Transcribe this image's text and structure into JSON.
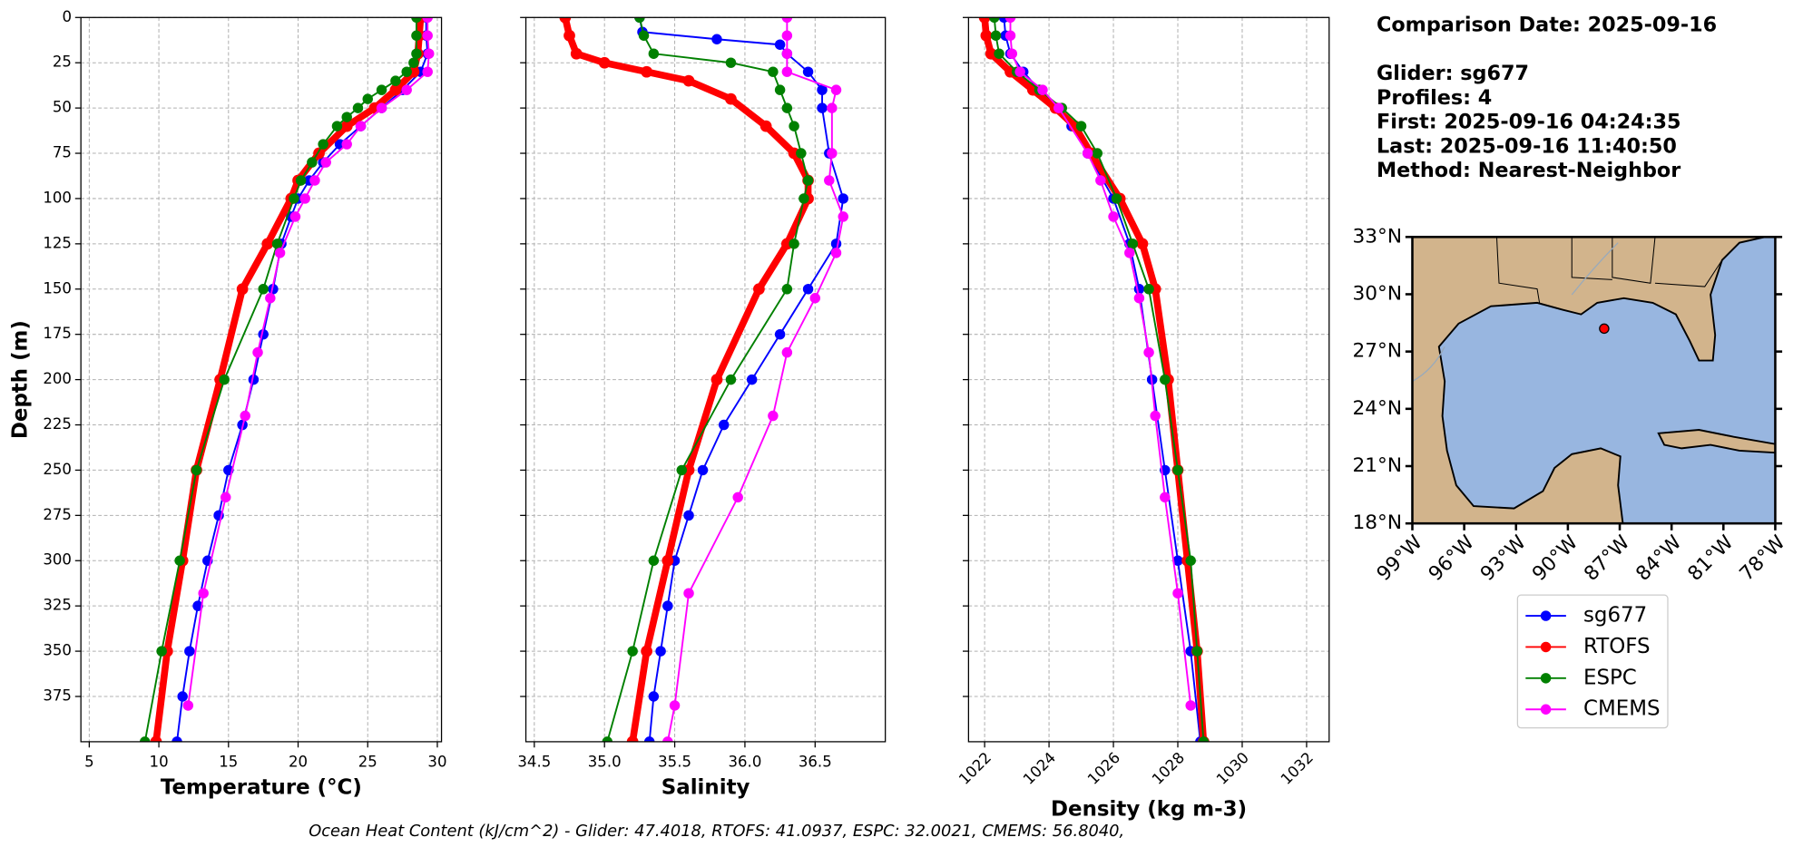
{
  "chart_data": [
    {
      "type": "line",
      "xlabel": "Temperature (°C)",
      "ylabel": "Depth (m)",
      "xlim": [
        4.4,
        30.3
      ],
      "xticks": [
        5,
        10,
        15,
        20,
        25,
        30
      ],
      "ylim": [
        400,
        0
      ],
      "yticks": [
        0,
        25,
        50,
        75,
        100,
        125,
        150,
        175,
        200,
        225,
        250,
        275,
        300,
        325,
        350,
        375
      ],
      "grid": true,
      "series": [
        {
          "name": "sg677",
          "color": "#0000ff",
          "linewidth": 1.5,
          "depth": [
            0,
            10,
            20,
            30,
            40,
            50,
            60,
            70,
            80,
            90,
            100,
            110,
            125,
            150,
            175,
            200,
            225,
            250,
            275,
            300,
            325,
            350,
            375,
            400
          ],
          "values": [
            29.2,
            29.2,
            29.3,
            28.8,
            27.5,
            26,
            24.5,
            23,
            21.8,
            20.8,
            20,
            19.5,
            18.8,
            18.2,
            17.5,
            16.8,
            16,
            15,
            14.3,
            13.5,
            12.8,
            12.2,
            11.7,
            11.3
          ]
        },
        {
          "name": "RTOFS",
          "color": "#ff0000",
          "linewidth": 6,
          "depth": [
            0,
            10,
            20,
            30,
            40,
            50,
            60,
            75,
            90,
            100,
            125,
            150,
            200,
            250,
            300,
            350,
            400
          ],
          "values": [
            28.8,
            28.7,
            28.6,
            28.3,
            27,
            25.5,
            23.5,
            21.5,
            20,
            19.5,
            17.8,
            16,
            14.4,
            12.7,
            11.7,
            10.6,
            9.8
          ]
        },
        {
          "name": "ESPC",
          "color": "#008000",
          "linewidth": 1.5,
          "depth": [
            0,
            10,
            20,
            25,
            30,
            35,
            40,
            45,
            50,
            55,
            60,
            70,
            80,
            90,
            100,
            125,
            150,
            200,
            250,
            300,
            350,
            400
          ],
          "values": [
            28.5,
            28.5,
            28.5,
            28.3,
            27.8,
            27,
            26,
            25,
            24.3,
            23.5,
            22.8,
            21.8,
            21,
            20.2,
            19.7,
            18.5,
            17.5,
            14.7,
            12.7,
            11.5,
            10.2,
            9.0
          ]
        },
        {
          "name": "CMEMS",
          "color": "#ff00ff",
          "linewidth": 1.5,
          "depth": [
            0,
            10,
            20,
            30,
            40,
            50,
            60,
            70,
            80,
            90,
            100,
            110,
            130,
            155,
            185,
            220,
            265,
            318,
            380
          ],
          "values": [
            29.3,
            29.3,
            29.4,
            29.3,
            27.8,
            26,
            24.5,
            23.5,
            22,
            21.2,
            20.5,
            19.8,
            18.7,
            18,
            17.1,
            16.2,
            14.8,
            13.2,
            12.1
          ]
        }
      ]
    },
    {
      "type": "line",
      "xlabel": "Salinity",
      "xlim": [
        34.44,
        37.0
      ],
      "xticks": [
        34.5,
        {
          "value": 35,
          "label": "35.0"
        },
        35.5,
        {
          "value": 36,
          "label": "36.0"
        },
        36.5
      ],
      "ylim": [
        400,
        0
      ],
      "yticks": [
        0,
        25,
        50,
        75,
        100,
        125,
        150,
        175,
        200,
        225,
        250,
        275,
        300,
        325,
        350,
        375
      ],
      "grid": true,
      "series": [
        {
          "color": "#0000ff",
          "linewidth": 1.5,
          "depth": [
            0,
            8,
            12,
            15,
            20,
            30,
            40,
            50,
            75,
            100,
            125,
            150,
            175,
            200,
            225,
            250,
            275,
            300,
            325,
            350,
            375,
            400
          ],
          "values": [
            35.25,
            35.27,
            35.8,
            36.25,
            36.3,
            36.45,
            36.55,
            36.55,
            36.6,
            36.7,
            36.65,
            36.45,
            36.25,
            36.05,
            35.85,
            35.7,
            35.6,
            35.5,
            35.45,
            35.4,
            35.35,
            35.32
          ]
        },
        {
          "color": "#ff0000",
          "linewidth": 6,
          "depth": [
            0,
            10,
            20,
            25,
            30,
            35,
            45,
            60,
            75,
            90,
            100,
            125,
            150,
            200,
            250,
            300,
            350,
            400
          ],
          "values": [
            34.72,
            34.75,
            34.8,
            35.0,
            35.3,
            35.6,
            35.9,
            36.15,
            36.35,
            36.45,
            36.45,
            36.3,
            36.1,
            35.8,
            35.6,
            35.45,
            35.3,
            35.2
          ]
        },
        {
          "color": "#008000",
          "linewidth": 1.5,
          "depth": [
            0,
            10,
            20,
            25,
            30,
            40,
            50,
            60,
            75,
            90,
            100,
            125,
            150,
            200,
            250,
            300,
            350,
            400
          ],
          "values": [
            35.25,
            35.28,
            35.35,
            35.9,
            36.2,
            36.25,
            36.3,
            36.35,
            36.4,
            36.45,
            36.42,
            36.35,
            36.3,
            35.9,
            35.55,
            35.35,
            35.2,
            35.02
          ]
        },
        {
          "color": "#ff00ff",
          "linewidth": 1.5,
          "depth": [
            0,
            10,
            20,
            30,
            40,
            50,
            75,
            90,
            110,
            130,
            155,
            185,
            220,
            265,
            318,
            380,
            400
          ],
          "values": [
            36.3,
            36.3,
            36.3,
            36.3,
            36.65,
            36.62,
            36.62,
            36.6,
            36.7,
            36.65,
            36.5,
            36.3,
            36.2,
            35.95,
            35.6,
            35.5,
            35.45
          ]
        }
      ]
    },
    {
      "type": "line",
      "xlabel": "Density (kg m-3)",
      "xlim": [
        1021.5,
        1032.7
      ],
      "xticks": [
        1022,
        1024,
        1026,
        1028,
        1030,
        1032
      ],
      "ylim": [
        400,
        0
      ],
      "yticks": [
        0,
        25,
        50,
        75,
        100,
        125,
        150,
        175,
        200,
        225,
        250,
        275,
        300,
        325,
        350,
        375
      ],
      "grid": true,
      "series": [
        {
          "color": "#0000ff",
          "linewidth": 1.5,
          "depth": [
            0,
            10,
            20,
            30,
            40,
            50,
            60,
            75,
            100,
            125,
            150,
            200,
            250,
            300,
            350,
            400
          ],
          "values": [
            1022.6,
            1022.65,
            1022.8,
            1023.2,
            1023.7,
            1024.2,
            1024.7,
            1025.2,
            1026,
            1026.5,
            1026.8,
            1027.2,
            1027.6,
            1028,
            1028.4,
            1028.7
          ]
        },
        {
          "color": "#ff0000",
          "linewidth": 6,
          "depth": [
            0,
            10,
            20,
            30,
            40,
            50,
            60,
            75,
            100,
            125,
            150,
            200,
            250,
            300,
            350,
            400
          ],
          "values": [
            1022.0,
            1022.05,
            1022.2,
            1022.8,
            1023.5,
            1024.2,
            1024.8,
            1025.3,
            1026.2,
            1026.9,
            1027.3,
            1027.7,
            1028,
            1028.3,
            1028.6,
            1028.8
          ]
        },
        {
          "color": "#008000",
          "linewidth": 1.5,
          "depth": [
            0,
            10,
            20,
            30,
            40,
            50,
            60,
            75,
            100,
            125,
            150,
            200,
            250,
            300,
            350,
            400
          ],
          "values": [
            1022.3,
            1022.35,
            1022.45,
            1023.0,
            1023.7,
            1024.4,
            1025,
            1025.5,
            1026.1,
            1026.6,
            1027.1,
            1027.6,
            1028,
            1028.4,
            1028.6,
            1028.8
          ]
        },
        {
          "color": "#ff00ff",
          "linewidth": 1.5,
          "depth": [
            0,
            10,
            20,
            30,
            40,
            50,
            75,
            90,
            110,
            130,
            155,
            185,
            220,
            265,
            318,
            380
          ],
          "values": [
            1022.8,
            1022.8,
            1022.85,
            1023.1,
            1023.8,
            1024.3,
            1025.2,
            1025.6,
            1026,
            1026.5,
            1026.8,
            1027.1,
            1027.3,
            1027.6,
            1028,
            1028.4
          ]
        }
      ]
    }
  ],
  "info": {
    "lines": [
      "Comparison Date: 2025-09-16",
      "Glider: sg677",
      "Profiles: 4",
      "First: 2025-09-16 04:24:35",
      "Last: 2025-09-16 11:40:50",
      "Method: Nearest-Neighbor"
    ]
  },
  "map": {
    "type": "map",
    "xlim": [
      -99,
      -78
    ],
    "ylim": [
      18,
      33
    ],
    "xticks": [
      {
        "value": -99,
        "label": "99°W"
      },
      {
        "value": -96,
        "label": "96°W"
      },
      {
        "value": -93,
        "label": "93°W"
      },
      {
        "value": -90,
        "label": "90°W"
      },
      {
        "value": -87,
        "label": "87°W"
      },
      {
        "value": -84,
        "label": "84°W"
      },
      {
        "value": -81,
        "label": "81°W"
      },
      {
        "value": -78,
        "label": "78°W"
      }
    ],
    "yticks": [
      {
        "value": 18,
        "label": "18°N"
      },
      {
        "value": 21,
        "label": "21°N"
      },
      {
        "value": 24,
        "label": "24°N"
      },
      {
        "value": 27,
        "label": "27°N"
      },
      {
        "value": 30,
        "label": "30°N"
      },
      {
        "value": 33,
        "label": "33°N"
      }
    ],
    "glider_position": {
      "lon": -87.9,
      "lat": 28.2,
      "color": "#ff0000"
    }
  },
  "footer": "Ocean Heat Content (kJ/cm^2) - Glider: 47.4018,  RTOFS: 41.0937,  ESPC: 32.0021,  CMEMS: 56.8040,"
}
